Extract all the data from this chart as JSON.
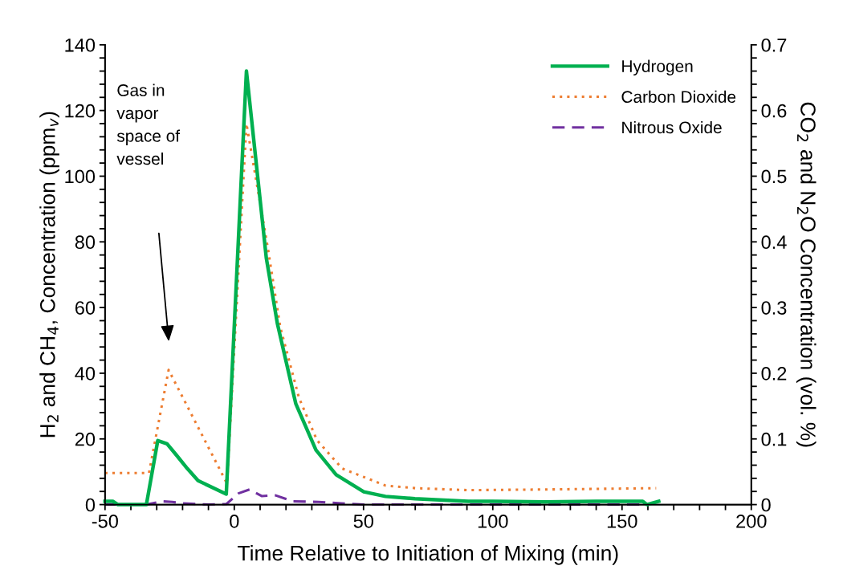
{
  "chart_data": {
    "type": "line",
    "xlabel": "Time Relative to Initiation of Mixing (min)",
    "ylabel": "H$_{2}$ and CH$_{4}$, Concentration (ppm$_{v}$)",
    "y2label": "CO$_{2}$ and N$_{2}$O Concentration (vol. %)",
    "xlim": [
      -50,
      200
    ],
    "ylim": [
      0,
      140
    ],
    "y2lim": [
      0,
      0.7
    ],
    "xticks": [
      -50,
      {
        "value": -40,
        "label": null
      },
      {
        "value": -30,
        "label": null
      },
      {
        "value": -20,
        "label": null
      },
      {
        "value": -10,
        "label": null
      },
      0,
      {
        "value": 10,
        "label": null
      },
      {
        "value": 20,
        "label": null
      },
      {
        "value": 30,
        "label": null
      },
      {
        "value": 40,
        "label": null
      },
      50,
      {
        "value": 60,
        "label": null
      },
      {
        "value": 70,
        "label": null
      },
      {
        "value": 80,
        "label": null
      },
      {
        "value": 90,
        "label": null
      },
      100,
      {
        "value": 110,
        "label": null
      },
      {
        "value": 120,
        "label": null
      },
      {
        "value": 130,
        "label": null
      },
      {
        "value": 140,
        "label": null
      },
      150,
      {
        "value": 160,
        "label": null
      },
      {
        "value": 170,
        "label": null
      },
      {
        "value": 180,
        "label": null
      },
      {
        "value": 190,
        "label": null
      },
      200
    ],
    "yticks": [
      0,
      {
        "value": 4,
        "label": null
      },
      {
        "value": 8,
        "label": null
      },
      {
        "value": 12,
        "label": null
      },
      {
        "value": 16,
        "label": null
      },
      20,
      {
        "value": 24,
        "label": null
      },
      {
        "value": 28,
        "label": null
      },
      {
        "value": 32,
        "label": null
      },
      {
        "value": 36,
        "label": null
      },
      40,
      {
        "value": 44,
        "label": null
      },
      {
        "value": 48,
        "label": null
      },
      {
        "value": 52,
        "label": null
      },
      {
        "value": 56,
        "label": null
      },
      60,
      {
        "value": 64,
        "label": null
      },
      {
        "value": 68,
        "label": null
      },
      {
        "value": 72,
        "label": null
      },
      {
        "value": 76,
        "label": null
      },
      80,
      {
        "value": 84,
        "label": null
      },
      {
        "value": 88,
        "label": null
      },
      {
        "value": 92,
        "label": null
      },
      {
        "value": 96,
        "label": null
      },
      100,
      {
        "value": 104,
        "label": null
      },
      {
        "value": 108,
        "label": null
      },
      {
        "value": 112,
        "label": null
      },
      {
        "value": 116,
        "label": null
      },
      120,
      {
        "value": 124,
        "label": null
      },
      {
        "value": 128,
        "label": null
      },
      {
        "value": 132,
        "label": null
      },
      {
        "value": 136,
        "label": null
      },
      140
    ],
    "y2ticks": [
      0,
      {
        "value": 0.02,
        "label": null
      },
      {
        "value": 0.04,
        "label": null
      },
      {
        "value": 0.06,
        "label": null
      },
      {
        "value": 0.08,
        "label": null
      },
      0.1,
      {
        "value": 0.12,
        "label": null
      },
      {
        "value": 0.14,
        "label": null
      },
      {
        "value": 0.16,
        "label": null
      },
      {
        "value": 0.18,
        "label": null
      },
      0.2,
      {
        "value": 0.22,
        "label": null
      },
      {
        "value": 0.24,
        "label": null
      },
      {
        "value": 0.26,
        "label": null
      },
      {
        "value": 0.28,
        "label": null
      },
      0.3,
      {
        "value": 0.32,
        "label": null
      },
      {
        "value": 0.34,
        "label": null
      },
      {
        "value": 0.36,
        "label": null
      },
      {
        "value": 0.38,
        "label": null
      },
      0.4,
      {
        "value": 0.42,
        "label": null
      },
      {
        "value": 0.44,
        "label": null
      },
      {
        "value": 0.46,
        "label": null
      },
      {
        "value": 0.48,
        "label": null
      },
      0.5,
      {
        "value": 0.52,
        "label": null
      },
      {
        "value": 0.54,
        "label": null
      },
      {
        "value": 0.56,
        "label": null
      },
      {
        "value": 0.58,
        "label": null
      },
      0.6,
      {
        "value": 0.62,
        "label": null
      },
      {
        "value": 0.64,
        "label": null
      },
      {
        "value": 0.66,
        "label": null
      },
      {
        "value": 0.68,
        "label": null
      },
      0.7
    ],
    "grid": false,
    "legend": "top right",
    "series": [
      {
        "name": "Hydrogen",
        "color": "#00b050",
        "line_style": "solid",
        "x": [
          -50,
          -47,
          -45,
          -34,
          -29.6,
          -26,
          -22.3,
          -18.2,
          -14,
          -3.1,
          4.7,
          12.4,
          16.7,
          23.8,
          31.6,
          39.4,
          50.1,
          58.5,
          69.9,
          90.5,
          100,
          120,
          140,
          158,
          159.6,
          164.2
        ],
        "values": [
          1,
          1,
          0,
          0,
          19.5,
          18.5,
          15,
          11,
          7.3,
          3.2,
          132,
          75,
          55,
          30.7,
          16.6,
          9.1,
          3.9,
          2.5,
          1.8,
          1,
          1,
          0.8,
          1,
          1,
          0,
          1
        ]
      },
      {
        "name": "Carbon Dioxide",
        "color": "#ed7d31",
        "line_style": "dotted",
        "axis": "y2",
        "x": [
          -50,
          -33,
          -25.4,
          -2.8,
          4.7,
          13,
          17.8,
          25,
          32,
          41.7,
          58.5,
          70,
          90.5,
          120,
          163.2
        ],
        "values": [
          0.048,
          0.048,
          0.205,
          0.032,
          0.58,
          0.39,
          0.27,
          0.163,
          0.098,
          0.055,
          0.029,
          0.025,
          0.022,
          0.023,
          0.025
        ]
      },
      {
        "name": "Nitrous Oxide",
        "color": "#7030a0",
        "line_style": "dashed",
        "axis": "y2",
        "x": [
          -50,
          -34,
          -28,
          -24,
          -20,
          -10,
          -3,
          1.6,
          5.9,
          10.6,
          16,
          22.6,
          32.6,
          41.3,
          50,
          100,
          160
        ],
        "values": [
          0,
          0,
          0.005,
          0.004,
          0.002,
          0.0,
          0.001,
          0.017,
          0.023,
          0.013,
          0.014,
          0.005,
          0.004,
          0.002,
          0,
          0,
          0
        ]
      }
    ],
    "annotations": [
      "Gas in\nvapor\nspace of\nvessel"
    ]
  }
}
